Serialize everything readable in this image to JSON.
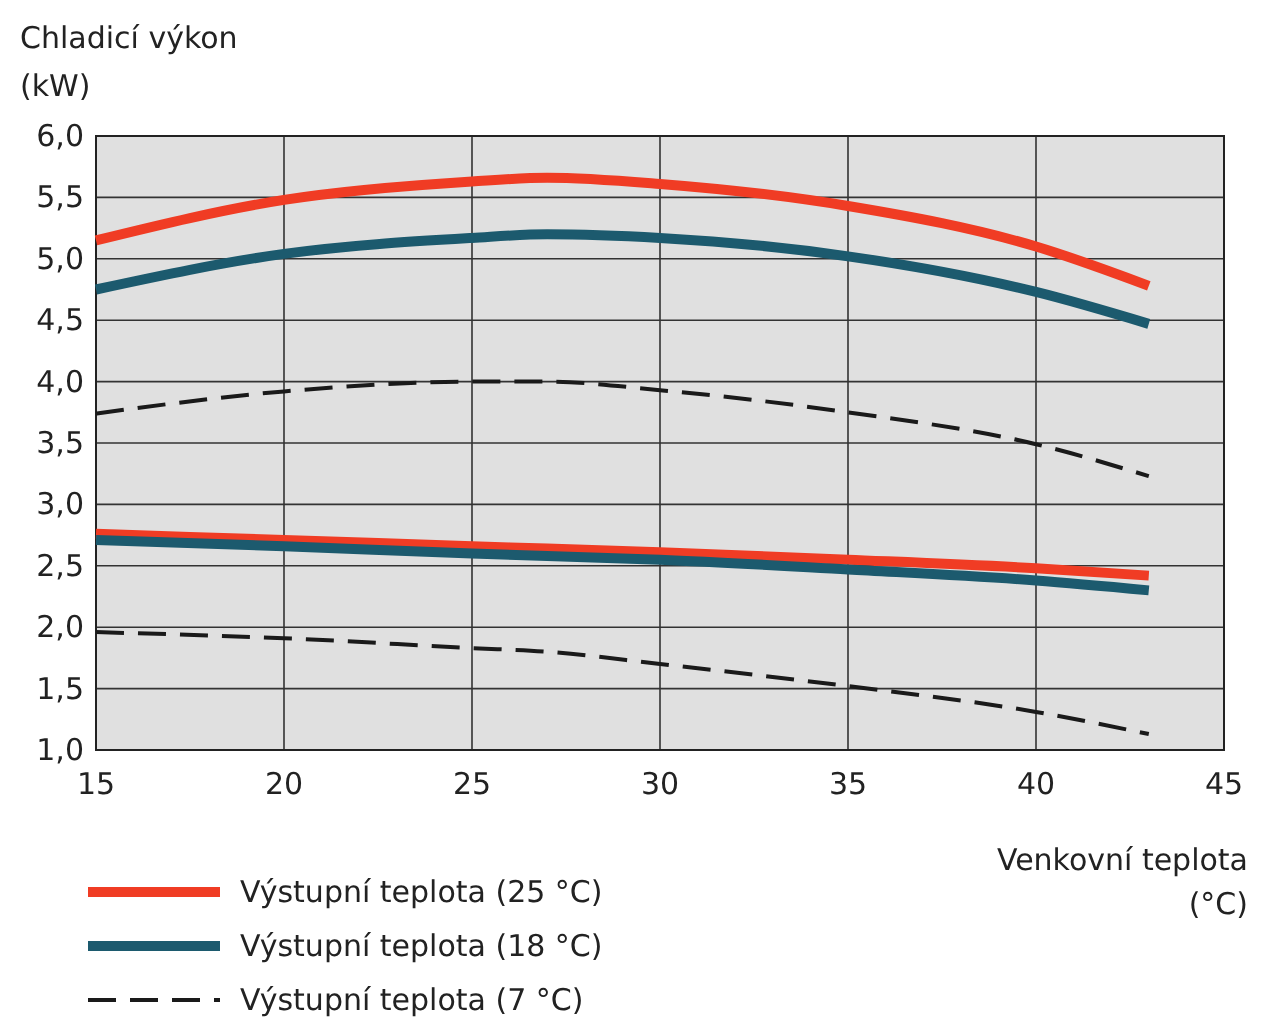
{
  "chart_data": {
    "type": "line",
    "xlabel": "Venkovní teplota (°C)",
    "ylabel": "Chladicí výkon (kW)",
    "x": [
      15,
      20,
      25,
      27,
      30,
      35,
      40,
      43
    ],
    "xlim": [
      15,
      45
    ],
    "xticks": [
      15,
      20,
      25,
      30,
      35,
      40,
      45
    ],
    "ylim": [
      1,
      6
    ],
    "yticks": [
      {
        "value": 1,
        "label": "1,0"
      },
      {
        "value": 1.5,
        "label": "1,5"
      },
      {
        "value": 2,
        "label": "2,0"
      },
      {
        "value": 2.5,
        "label": "2,5"
      },
      {
        "value": 3,
        "label": "3,0"
      },
      {
        "value": 3.5,
        "label": "3,5"
      },
      {
        "value": 4,
        "label": "4,0"
      },
      {
        "value": 4.5,
        "label": "4,5"
      },
      {
        "value": 5,
        "label": "5,0"
      },
      {
        "value": 5.5,
        "label": "5,5"
      },
      {
        "value": 6,
        "label": "6,0"
      }
    ],
    "grid": true,
    "legend": "bottom",
    "series": [
      {
        "name": "Výstupní teplota (25 °C)",
        "color": "#f03c24",
        "line_style": "solid",
        "values": [
          5.15,
          5.48,
          5.63,
          5.66,
          5.61,
          5.43,
          5.1,
          4.78
        ]
      },
      {
        "name": "Výstupní teplota (18 °C)",
        "color": "#1c5a6e",
        "line_style": "solid",
        "values": [
          4.75,
          5.04,
          5.17,
          5.2,
          5.17,
          5.02,
          4.73,
          4.47
        ]
      },
      {
        "name": "Výstupní teplota (7 °C)",
        "color": "#1a1a1a",
        "line_style": "dashed",
        "values": [
          3.74,
          3.92,
          4.0,
          4.0,
          3.93,
          3.75,
          3.49,
          3.23
        ]
      },
      {
        "color": "#f03c24",
        "line_style": "solid",
        "values": [
          2.76,
          2.71,
          2.66,
          2.64,
          2.61,
          2.55,
          2.48,
          2.42
        ]
      },
      {
        "color": "#1c5a6e",
        "line_style": "solid",
        "values": [
          2.71,
          2.66,
          2.6,
          2.58,
          2.55,
          2.47,
          2.38,
          2.3
        ]
      },
      {
        "color": "#1a1a1a",
        "line_style": "dashed",
        "values": [
          1.96,
          1.91,
          1.83,
          1.8,
          1.7,
          1.52,
          1.31,
          1.13
        ]
      }
    ]
  }
}
